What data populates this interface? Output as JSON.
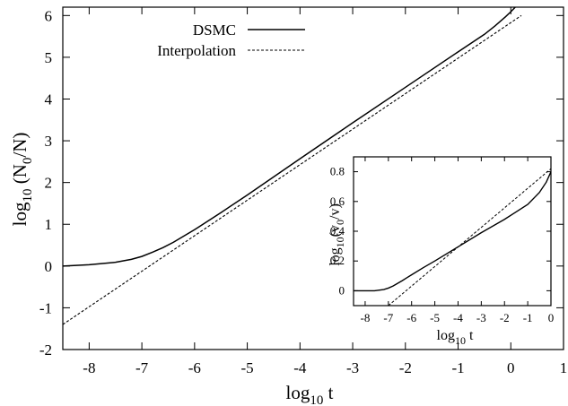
{
  "chart_data": [
    {
      "type": "line",
      "title": "",
      "xlabel": {
        "base": "log",
        "sub": "10",
        "rest": " t"
      },
      "ylabel": {
        "base": "log",
        "sub": "10",
        "mid": " (N",
        "sub2": "0",
        "rest": "/N)"
      },
      "xlim": [
        -8.5,
        1
      ],
      "ylim": [
        -2,
        6.2
      ],
      "xticks": [
        "-8",
        "-7",
        "-6",
        "-5",
        "-4",
        "-3",
        "-2",
        "-1",
        "0",
        "1"
      ],
      "yticks": [
        "-2",
        "-1",
        "0",
        "1",
        "2",
        "3",
        "4",
        "5",
        "6"
      ],
      "grid": false,
      "legend_position": "top-left",
      "series": [
        {
          "name": "DSMC",
          "style": "solid",
          "x": [
            -8.5,
            -8.0,
            -7.5,
            -7.2,
            -7.0,
            -6.8,
            -6.6,
            -6.4,
            -6.2,
            -6.0,
            -5.5,
            -5.0,
            -4.0,
            -3.0,
            -2.0,
            -1.0,
            -0.5,
            -0.3,
            -0.1,
            0.0,
            0.1,
            0.17
          ],
          "y": [
            0.0,
            0.03,
            0.09,
            0.16,
            0.23,
            0.33,
            0.44,
            0.57,
            0.72,
            0.87,
            1.28,
            1.7,
            2.57,
            3.43,
            4.28,
            5.13,
            5.55,
            5.75,
            5.97,
            6.09,
            6.22,
            6.3
          ]
        },
        {
          "name": "Interpolation",
          "style": "dashed",
          "x": [
            -8.5,
            0.2
          ],
          "y": [
            -1.4,
            6.0
          ]
        }
      ]
    },
    {
      "type": "line",
      "title": "",
      "xlabel": {
        "base": "log",
        "sub": "10",
        "rest": " t"
      },
      "ylabel": {
        "base": "log",
        "sub": "10",
        "mid": "(v",
        "sub2": "0",
        "rest": "/v)"
      },
      "xlim": [
        -8.5,
        0
      ],
      "ylim": [
        -0.1,
        0.9
      ],
      "xticks": [
        "-8",
        "-7",
        "-6",
        "-5",
        "-4",
        "-3",
        "-2",
        "-1",
        "0"
      ],
      "yticks": [
        "0",
        "0.2",
        "0.4",
        "0.6",
        "0.8"
      ],
      "grid": false,
      "series": [
        {
          "style": "solid",
          "x": [
            -8.5,
            -7.6,
            -7.2,
            -7.0,
            -6.8,
            -6.6,
            -6.4,
            -6.2,
            -6.0,
            -5.5,
            -5.0,
            -4.0,
            -3.0,
            -2.0,
            -1.5,
            -1.0,
            -0.5,
            -0.2,
            0.0
          ],
          "y": [
            0.0,
            0.0,
            0.008,
            0.018,
            0.032,
            0.05,
            0.068,
            0.088,
            0.107,
            0.155,
            0.2,
            0.295,
            0.39,
            0.48,
            0.53,
            0.58,
            0.66,
            0.73,
            0.8
          ]
        },
        {
          "style": "dashed",
          "x": [
            -7.0,
            0.0
          ],
          "y": [
            -0.1,
            0.82
          ]
        }
      ]
    }
  ]
}
